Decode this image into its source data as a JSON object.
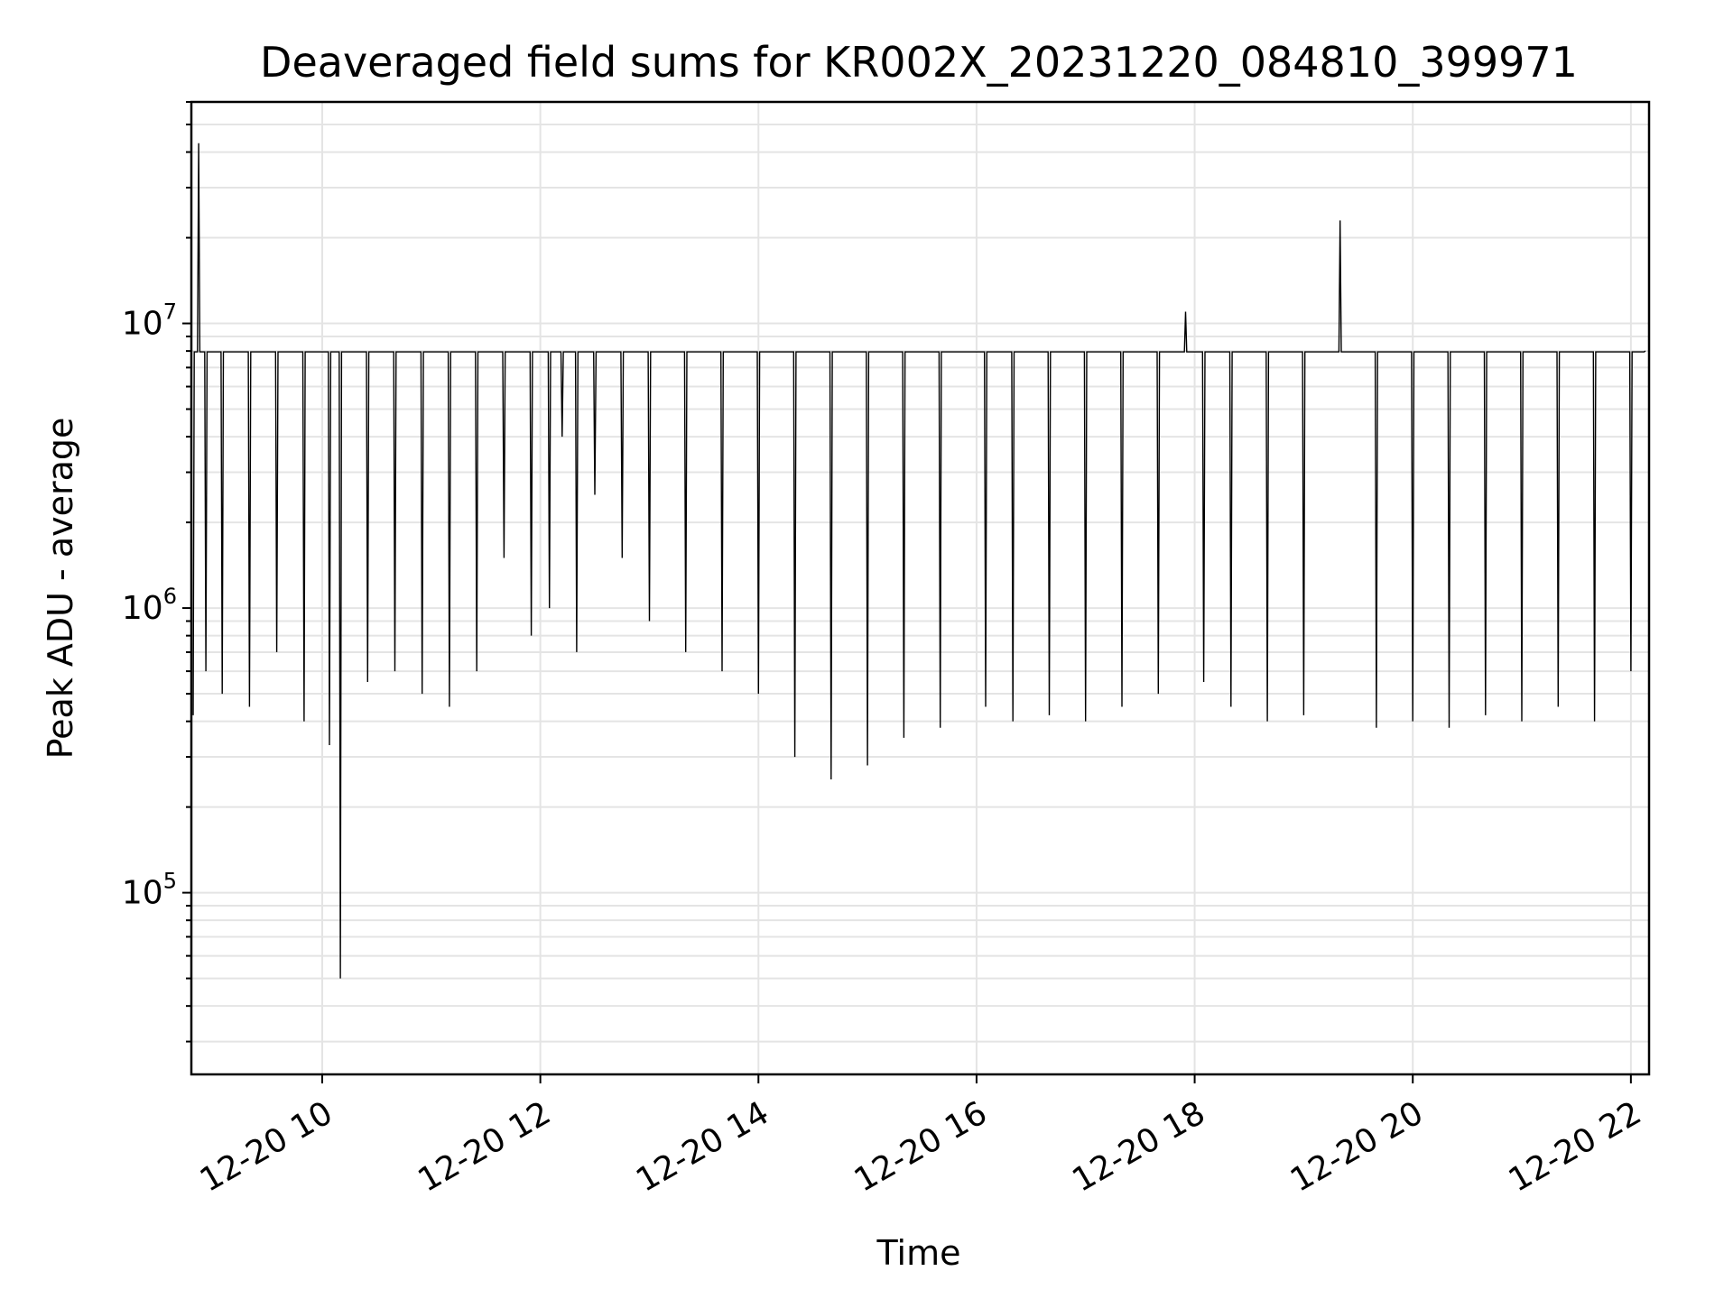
{
  "chart_data": {
    "type": "line",
    "title": "Deaveraged field sums for KR002X_20231220_084810_399971",
    "xlabel": "Time",
    "ylabel": "Peak ADU - average",
    "y_scale": "log",
    "ylim": [
      23000,
      60000000
    ],
    "xlim": [
      "12-20 08:48",
      "12-20 22:10"
    ],
    "x_ticks": [
      {
        "value": "12-20 10:00",
        "label": "12-20 10"
      },
      {
        "value": "12-20 12:00",
        "label": "12-20 12"
      },
      {
        "value": "12-20 14:00",
        "label": "12-20 14"
      },
      {
        "value": "12-20 16:00",
        "label": "12-20 16"
      },
      {
        "value": "12-20 18:00",
        "label": "12-20 18"
      },
      {
        "value": "12-20 20:00",
        "label": "12-20 20"
      },
      {
        "value": "12-20 22:00",
        "label": "12-20 22"
      }
    ],
    "y_ticks": [
      {
        "value": 100000,
        "base": "10",
        "exp": "5"
      },
      {
        "value": 1000000,
        "base": "10",
        "exp": "6"
      },
      {
        "value": 10000000,
        "base": "10",
        "exp": "7"
      }
    ],
    "grid": true,
    "line_color": "#000000",
    "series": [
      {
        "x": [
          "12-20 08:49",
          "12-20 08:52",
          "12-20 08:56",
          "12-20 09:05",
          "12-20 09:20",
          "12-20 09:35",
          "12-20 09:50",
          "12-20 10:04",
          "12-20 10:10",
          "12-20 10:25",
          "12-20 10:40",
          "12-20 10:55",
          "12-20 11:10",
          "12-20 11:25",
          "12-20 11:40",
          "12-20 11:55",
          "12-20 12:05",
          "12-20 12:12",
          "12-20 12:20",
          "12-20 12:30",
          "12-20 12:45",
          "12-20 13:00",
          "12-20 13:20",
          "12-20 13:40",
          "12-20 14:00",
          "12-20 14:20",
          "12-20 14:40",
          "12-20 15:00",
          "12-20 15:20",
          "12-20 15:40",
          "12-20 16:05",
          "12-20 16:20",
          "12-20 16:40",
          "12-20 17:00",
          "12-20 17:20",
          "12-20 17:40",
          "12-20 17:55",
          "12-20 18:05",
          "12-20 18:20",
          "12-20 18:40",
          "12-20 19:00",
          "12-20 19:20",
          "12-20 19:40",
          "12-20 20:00",
          "12-20 20:20",
          "12-20 20:40",
          "12-20 21:00",
          "12-20 21:20",
          "12-20 21:40",
          "12-20 22:00",
          "12-20 22:08"
        ],
        "values": [
          420000,
          43000000,
          600000,
          500000,
          450000,
          700000,
          400000,
          330000,
          50000,
          550000,
          600000,
          500000,
          450000,
          600000,
          1500000,
          800000,
          1000000,
          4000000,
          700000,
          2500000,
          1500000,
          900000,
          700000,
          600000,
          500000,
          300000,
          250000,
          280000,
          350000,
          380000,
          450000,
          400000,
          420000,
          400000,
          450000,
          500000,
          11000000,
          550000,
          450000,
          400000,
          420000,
          23000000,
          380000,
          400000,
          380000,
          420000,
          400000,
          450000,
          400000,
          600000,
          8000000
        ]
      }
    ]
  }
}
